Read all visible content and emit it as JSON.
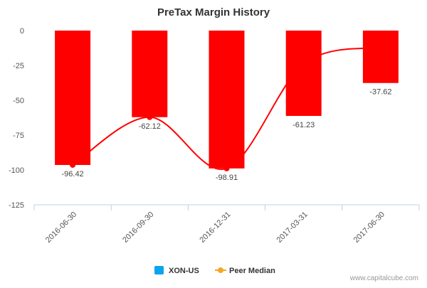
{
  "watermark": "www.capitalcube.com",
  "colors": {
    "bar": "#ff0000",
    "peer_line": "#ff0000",
    "peer_marker": "#ff0000",
    "legend_primary": "#0ba4ee",
    "legend_peer": "#f7a622",
    "axis_line": "#c0d0e0",
    "tick_text": "#555555",
    "title_text": "#333333",
    "label_text": "#444444"
  },
  "chart_data": {
    "type": "bar",
    "title": "PreTax Margin History",
    "xlabel": "",
    "ylabel": "",
    "categories": [
      "2016-06-30",
      "2016-09-30",
      "2016-12-31",
      "2017-03-31",
      "2017-06-30"
    ],
    "ylim": [
      -125,
      0
    ],
    "yticks": [
      0,
      -25,
      -50,
      -75,
      -100,
      -125
    ],
    "grid": false,
    "legend_position": "bottom-center",
    "series": [
      {
        "name": "XON-US",
        "type": "bar",
        "values": [
          -96.42,
          -62.12,
          -98.91,
          -61.23,
          -37.62
        ],
        "labels": [
          "-96.42",
          "-62.12",
          "-98.91",
          "-61.23",
          "-37.62"
        ]
      },
      {
        "name": "Peer Median",
        "type": "line",
        "values": [
          -96.42,
          -62.12,
          -98.91,
          -24.0,
          -12.0
        ]
      }
    ]
  }
}
